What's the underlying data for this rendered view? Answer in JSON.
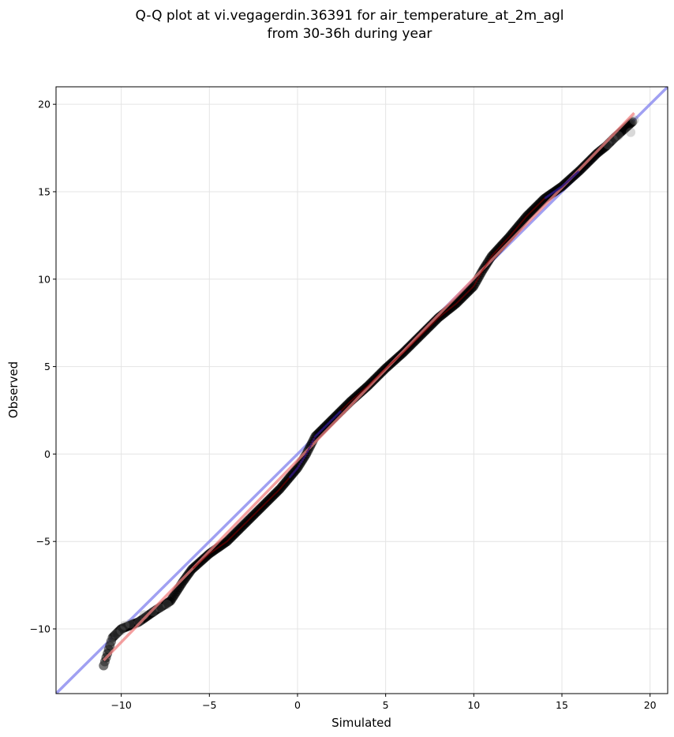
{
  "chart_data": {
    "type": "scatter",
    "title": [
      "Q-Q plot at vi.vegagerdin.36391 for air_temperature_at_2m_agl",
      "from 30-36h during year"
    ],
    "xlabel": "Simulated",
    "ylabel": "Observed",
    "xlim": [
      -13.7,
      21.0
    ],
    "ylim": [
      -13.7,
      21.0
    ],
    "xticks": [
      -10,
      -5,
      0,
      5,
      10,
      15,
      20
    ],
    "yticks": [
      -10,
      -5,
      0,
      5,
      10,
      15,
      20
    ],
    "xtick_labels": [
      "−10",
      "−5",
      "0",
      "5",
      "10",
      "15",
      "20"
    ],
    "ytick_labels": [
      "−10",
      "−5",
      "0",
      "5",
      "10",
      "15",
      "20"
    ],
    "grid": true,
    "legend": false,
    "quantile_curve": [
      [
        -11,
        -12.1
      ],
      [
        -10.5,
        -10.5
      ],
      [
        -10,
        -10.0
      ],
      [
        -9,
        -9.6
      ],
      [
        -8,
        -8.9
      ],
      [
        -7.2,
        -8.4
      ],
      [
        -6.5,
        -7.3
      ],
      [
        -6,
        -6.6
      ],
      [
        -5,
        -5.7
      ],
      [
        -4,
        -5.0
      ],
      [
        -3,
        -4.0
      ],
      [
        -2,
        -3.0
      ],
      [
        -1,
        -2.0
      ],
      [
        0,
        -0.8
      ],
      [
        0.5,
        0.0
      ],
      [
        1,
        1.0
      ],
      [
        2,
        2.0
      ],
      [
        3,
        3.0
      ],
      [
        4,
        3.9
      ],
      [
        5,
        4.9
      ],
      [
        6,
        5.8
      ],
      [
        7,
        6.8
      ],
      [
        8,
        7.8
      ],
      [
        9,
        8.6
      ],
      [
        9.5,
        9.1
      ],
      [
        10,
        9.6
      ],
      [
        10.5,
        10.5
      ],
      [
        11,
        11.3
      ],
      [
        12,
        12.4
      ],
      [
        13,
        13.6
      ],
      [
        14,
        14.6
      ],
      [
        15,
        15.3
      ],
      [
        16,
        16.2
      ],
      [
        17,
        17.2
      ],
      [
        17.5,
        17.6
      ],
      [
        18,
        18.1
      ],
      [
        19,
        19.0
      ]
    ],
    "outliers": [
      [
        -11,
        -12.1
      ],
      [
        -10.6,
        -10.7
      ],
      [
        -10.3,
        -10.3
      ],
      [
        -10.0,
        -10.1
      ],
      [
        -9.8,
        -9.8
      ],
      [
        -9.5,
        -9.7
      ],
      [
        -9.0,
        -9.6
      ],
      [
        -8.7,
        -9.2
      ],
      [
        -8.2,
        -9.0
      ],
      [
        -7.8,
        -8.8
      ],
      [
        -7.4,
        -8.6
      ],
      [
        17.6,
        17.7
      ],
      [
        17.9,
        18.0
      ],
      [
        18.2,
        18.2
      ],
      [
        18.9,
        18.4
      ],
      [
        19.1,
        19.1
      ]
    ],
    "identity_line": {
      "color": "#8080ee",
      "from": -13.7,
      "to": 21.0
    },
    "fit_line": {
      "color": "#f08080",
      "points": [
        [
          -11,
          -11.8
        ],
        [
          19.1,
          19.5
        ]
      ]
    },
    "point_color": "#000000"
  }
}
